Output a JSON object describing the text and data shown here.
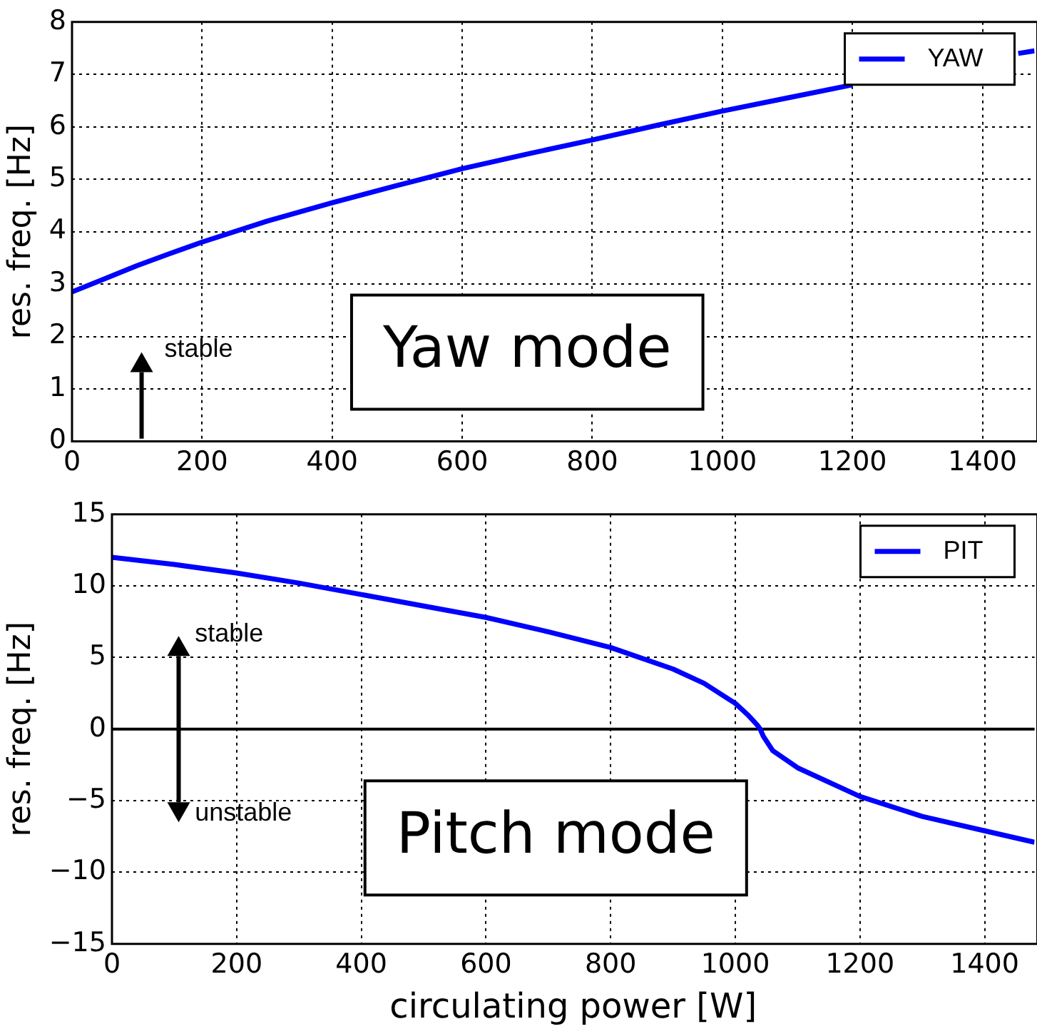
{
  "chart_data": [
    {
      "type": "line",
      "ylabel": "res. freq. [Hz]",
      "series": [
        {
          "name": "YAW",
          "color": "#0000ff",
          "x": [
            0,
            50,
            100,
            150,
            200,
            300,
            400,
            500,
            600,
            700,
            800,
            900,
            1000,
            1100,
            1200,
            1250,
            1455,
            1480
          ],
          "values": [
            2.85,
            3.1,
            3.35,
            3.58,
            3.8,
            4.2,
            4.55,
            4.88,
            5.2,
            5.48,
            5.75,
            6.03,
            6.3,
            6.55,
            6.8,
            null,
            7.4,
            7.45
          ]
        }
      ],
      "xlim": [
        0,
        1480
      ],
      "xticks": [
        0,
        200,
        400,
        600,
        800,
        1000,
        1200,
        1400
      ],
      "ylim": [
        0,
        8
      ],
      "yticks": [
        0,
        1,
        2,
        3,
        4,
        5,
        6,
        7,
        8
      ],
      "grid": true,
      "legend": "top right",
      "line_style": "solid",
      "marker": "none",
      "annotations": [
        "Yaw mode",
        "stable"
      ]
    },
    {
      "type": "line",
      "ylabel": "res. freq. [Hz]",
      "xlabel": "circulating power [W]",
      "series": [
        {
          "name": "PIT",
          "color": "#0000ff",
          "x": [
            0,
            100,
            200,
            300,
            400,
            500,
            600,
            700,
            800,
            900,
            950,
            1000,
            1020,
            1035,
            1040,
            1045,
            1060,
            1100,
            1200,
            1300,
            1400,
            1480
          ],
          "values": [
            12,
            11.5,
            10.9,
            10.2,
            9.4,
            8.6,
            7.8,
            6.8,
            5.7,
            4.2,
            3.2,
            1.8,
            1.0,
            0.3,
            0,
            -0.5,
            -1.5,
            -2.7,
            -4.7,
            -6.1,
            -7.1,
            -7.9
          ]
        }
      ],
      "xlim": [
        0,
        1480
      ],
      "xticks": [
        0,
        200,
        400,
        600,
        800,
        1000,
        1200,
        1400
      ],
      "ylim": [
        -15,
        15
      ],
      "yticks": [
        -15,
        -10,
        -5,
        0,
        5,
        10,
        15
      ],
      "grid": true,
      "legend": "top right",
      "line_style": "solid",
      "marker": "none",
      "ref_lines": [
        {
          "axis": "y",
          "value": 0,
          "color": "#000000"
        }
      ],
      "annotations": [
        "Pitch mode",
        "stable",
        "unstable"
      ]
    }
  ]
}
